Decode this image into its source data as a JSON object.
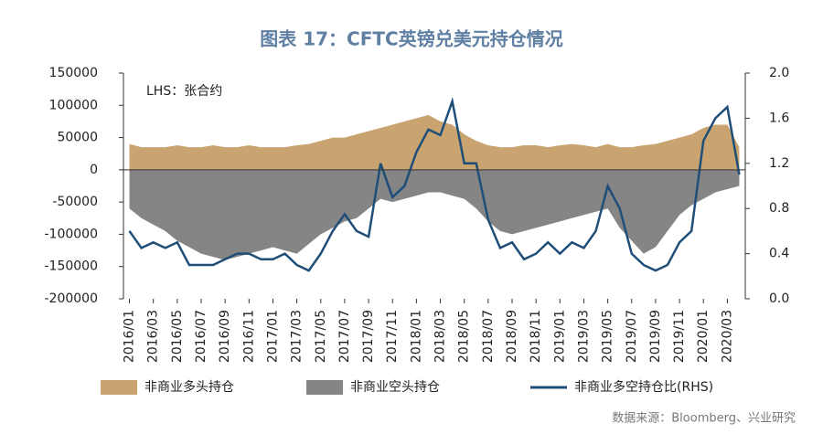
{
  "chart_data": {
    "type": "area-line",
    "title": "图表 17：CFTC英镑兑美元持仓情况",
    "annotation": "LHS：张合约",
    "source": "数据来源：Bloomberg、兴业研究",
    "categories": [
      "2016/01",
      null,
      "2016/03",
      null,
      "2016/05",
      null,
      "2016/07",
      null,
      "2016/09",
      null,
      "2016/11",
      null,
      "2017/01",
      null,
      "2017/03",
      null,
      "2017/05",
      null,
      "2017/07",
      null,
      "2017/09",
      null,
      "2017/11",
      null,
      "2018/01",
      null,
      "2018/03",
      null,
      "2018/05",
      null,
      "2018/07",
      null,
      "2018/09",
      null,
      "2018/11",
      null,
      "2019/01",
      null,
      "2019/03",
      null,
      "2019/05",
      null,
      "2019/07",
      null,
      "2019/09",
      null,
      "2019/11",
      null,
      "2020/01",
      null,
      "2020/03",
      null
    ],
    "series": [
      {
        "name": "非商业多头持仓",
        "color": "#c9a470",
        "axis": "y",
        "values": [
          40000,
          35000,
          35000,
          35000,
          38000,
          35000,
          35000,
          38000,
          35000,
          35000,
          38000,
          35000,
          35000,
          35000,
          38000,
          40000,
          45000,
          50000,
          50000,
          55000,
          60000,
          65000,
          70000,
          75000,
          80000,
          85000,
          75000,
          70000,
          55000,
          45000,
          38000,
          35000,
          35000,
          38000,
          38000,
          35000,
          38000,
          40000,
          38000,
          35000,
          40000,
          35000,
          35000,
          38000,
          40000,
          45000,
          50000,
          55000,
          65000,
          70000,
          70000,
          35000
        ]
      },
      {
        "name": "非商业空头持仓",
        "color": "#858585",
        "axis": "y",
        "values": [
          -60000,
          -75000,
          -85000,
          -95000,
          -110000,
          -120000,
          -130000,
          -135000,
          -140000,
          -135000,
          -130000,
          -125000,
          -120000,
          -125000,
          -130000,
          -115000,
          -100000,
          -90000,
          -80000,
          -75000,
          -60000,
          -45000,
          -50000,
          -45000,
          -40000,
          -35000,
          -35000,
          -40000,
          -45000,
          -60000,
          -80000,
          -95000,
          -100000,
          -95000,
          -90000,
          -85000,
          -80000,
          -75000,
          -70000,
          -65000,
          -60000,
          -90000,
          -110000,
          -130000,
          -120000,
          -95000,
          -70000,
          -55000,
          -45000,
          -35000,
          -30000,
          -25000
        ]
      },
      {
        "name": "非商业多空持仓比(RHS)",
        "color": "#1f4e79",
        "axis": "y2",
        "values": [
          0.6,
          0.45,
          0.5,
          0.45,
          0.5,
          0.3,
          0.3,
          0.3,
          0.35,
          0.4,
          0.4,
          0.35,
          0.35,
          0.4,
          0.3,
          0.25,
          0.4,
          0.6,
          0.75,
          0.6,
          0.55,
          1.2,
          0.9,
          1.0,
          1.3,
          1.5,
          1.45,
          1.75,
          1.2,
          1.2,
          0.7,
          0.45,
          0.5,
          0.35,
          0.4,
          0.5,
          0.4,
          0.5,
          0.45,
          0.6,
          1.0,
          0.8,
          0.4,
          0.3,
          0.25,
          0.3,
          0.5,
          0.6,
          1.4,
          1.6,
          1.7,
          1.1
        ]
      }
    ],
    "ylim": [
      -200000,
      150000
    ],
    "yticks": [
      -200000,
      -150000,
      -100000,
      -50000,
      0,
      50000,
      100000,
      150000
    ],
    "y2lim": [
      0,
      2.0
    ],
    "y2ticks": [
      {
        "value": 0,
        "label": "0.0"
      },
      {
        "value": 0.4,
        "label": "0.4"
      },
      {
        "value": 0.8,
        "label": "0.8"
      },
      {
        "value": 1.2,
        "label": "1.2"
      },
      {
        "value": 1.6,
        "label": "1.6"
      },
      {
        "value": 2.0,
        "label": "2.0"
      }
    ]
  }
}
